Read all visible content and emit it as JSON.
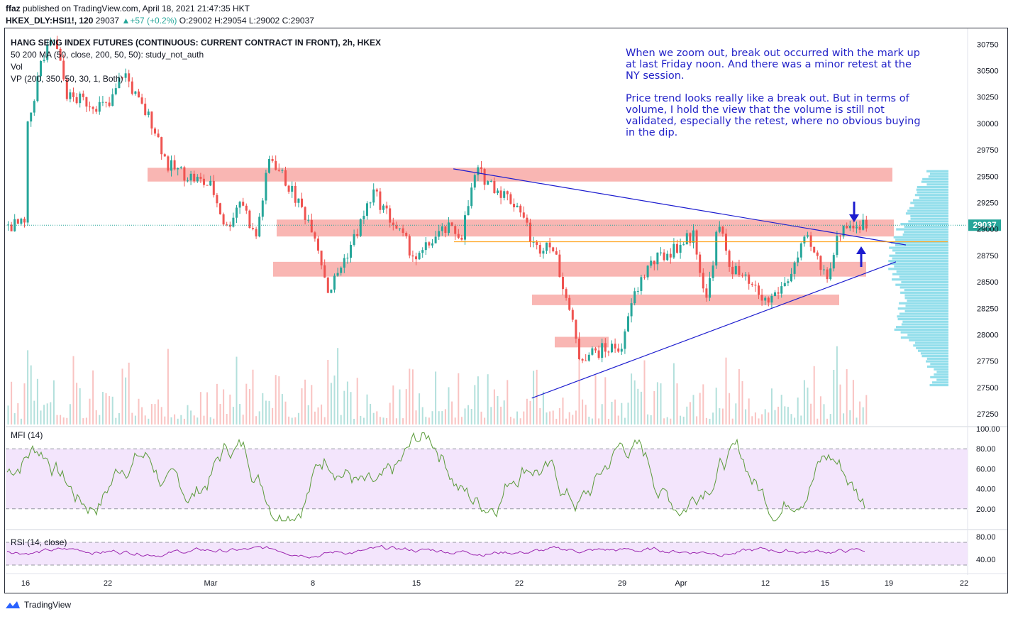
{
  "header": {
    "publisher": "ffaz",
    "published_text": "published on TradingView.com, April 18, 2021 21:47:35 HKT",
    "symbol": "HKEX_DLY:HSI1!, 120",
    "last": "29037",
    "change": "+57 (+0.2%)",
    "open": "O:29002",
    "high": "H:29054",
    "low": "L:29002",
    "close": "C:29037"
  },
  "legend": {
    "title": "HANG SENG INDEX FUTURES (CONTINUOUS: CURRENT CONTRACT IN FRONT), 2h, HKEX",
    "ma": "50 200 MA (50, close, 200, 50, 50): study_not_auth",
    "vol": "Vol",
    "vp": "VP (200, 350, 50, 30, 1, Both)",
    "mfi": "MFI (14)",
    "rsi": "RSI (14, close)"
  },
  "annotation": {
    "lines": [
      "When we zoom out, break out occurred with the mark up",
      "at last Friday noon. And there was a minor retest at the",
      "NY session.",
      "",
      "Price trend looks really like a break out. But in terms of",
      "volume, I hold the view that the volume is still not",
      "validated, especially the retest, where no obvious buying",
      "in the dip."
    ]
  },
  "footer": {
    "brand": "TradingView"
  },
  "colors": {
    "zone": "#f8a9a6",
    "trend": "#1c1ccf",
    "up": "#26a69a",
    "down": "#ef5350",
    "vp": "#7fd8e8",
    "mfi_band": "#f3e5fc",
    "mfi_line": "#5a9b3a",
    "rsi_line": "#9c27b0",
    "price_label": "#26a69a"
  },
  "chart_data": {
    "type": "candlestick",
    "title": "HANG SENG INDEX FUTURES (CONTINUOUS: CURRENT CONTRACT IN FRONT), 2h, HKEX",
    "price_axis": {
      "ticks": [
        30750,
        30500,
        30250,
        30000,
        29750,
        29500,
        29250,
        29000,
        28750,
        28500,
        28250,
        28000,
        27750,
        27500,
        27250
      ],
      "ylim": [
        27150,
        30900
      ]
    },
    "date_axis": {
      "ticks": [
        "16",
        "22",
        "Mar",
        "8",
        "15",
        "22",
        "29",
        "Apr",
        "12",
        "15",
        "19",
        "22"
      ]
    },
    "last_price": 29037,
    "price_path": [
      [
        "Feb 16",
        29900
      ],
      [
        "Feb 17",
        30550
      ],
      [
        "Feb 18",
        30800
      ],
      [
        "Feb 19",
        30250
      ],
      [
        "Feb 22",
        30150
      ],
      [
        "Feb 23",
        30500
      ],
      [
        "Feb 24",
        30200
      ],
      [
        "Feb 25",
        30000
      ],
      [
        "Feb 26",
        29600
      ],
      [
        "Mar 1",
        29400
      ],
      [
        "Mar 2",
        29000
      ],
      [
        "Mar 3",
        29300
      ],
      [
        "Mar 4",
        28900
      ],
      [
        "Mar 5",
        29700
      ],
      [
        "Mar 8",
        29000
      ],
      [
        "Mar 9",
        28400
      ],
      [
        "Mar 10",
        28700
      ],
      [
        "Mar 11",
        29000
      ],
      [
        "Mar 12",
        29350
      ],
      [
        "Mar 15",
        28700
      ],
      [
        "Mar 16",
        28900
      ],
      [
        "Mar 17",
        29000
      ],
      [
        "Mar 18",
        28950
      ],
      [
        "Mar 19",
        29550
      ],
      [
        "Mar 22",
        29200
      ],
      [
        "Mar 23",
        28800
      ],
      [
        "Mar 24",
        28900
      ],
      [
        "Mar 25",
        28450
      ],
      [
        "Mar 26",
        27800
      ],
      [
        "Mar 29",
        27900
      ],
      [
        "Mar 30",
        28300
      ],
      [
        "Mar 31",
        28500
      ],
      [
        "Apr 1",
        28650
      ],
      [
        "Apr 6",
        28950
      ],
      [
        "Apr 7",
        28300
      ],
      [
        "Apr 8",
        29050
      ],
      [
        "Apr 9",
        28650
      ],
      [
        "Apr 12",
        28300
      ],
      [
        "Apr 13",
        28500
      ],
      [
        "Apr 14",
        28900
      ],
      [
        "Apr 15",
        28550
      ],
      [
        "Apr 16",
        29037
      ]
    ],
    "zones": [
      {
        "from": 29450,
        "to": 29580
      },
      {
        "from": 28930,
        "to": 29090
      },
      {
        "from": 28550,
        "to": 28690
      },
      {
        "from": 28280,
        "to": 28380
      },
      {
        "from": 27880,
        "to": 27980
      }
    ],
    "trendlines": [
      {
        "from": [
          "Mar 18",
          29570
        ],
        "to": [
          "Apr 19",
          28850
        ]
      },
      {
        "from": [
          "Mar 23",
          27400
        ],
        "to": [
          "Apr 19",
          28690
        ]
      }
    ],
    "horizontal_line": 28880,
    "mfi": {
      "levels": [
        80,
        20
      ],
      "axis": [
        100.0,
        80.0,
        60.0,
        40.0,
        20.0
      ]
    },
    "rsi": {
      "levels": [
        70,
        30
      ],
      "axis": [
        80.0,
        40.0
      ]
    }
  }
}
